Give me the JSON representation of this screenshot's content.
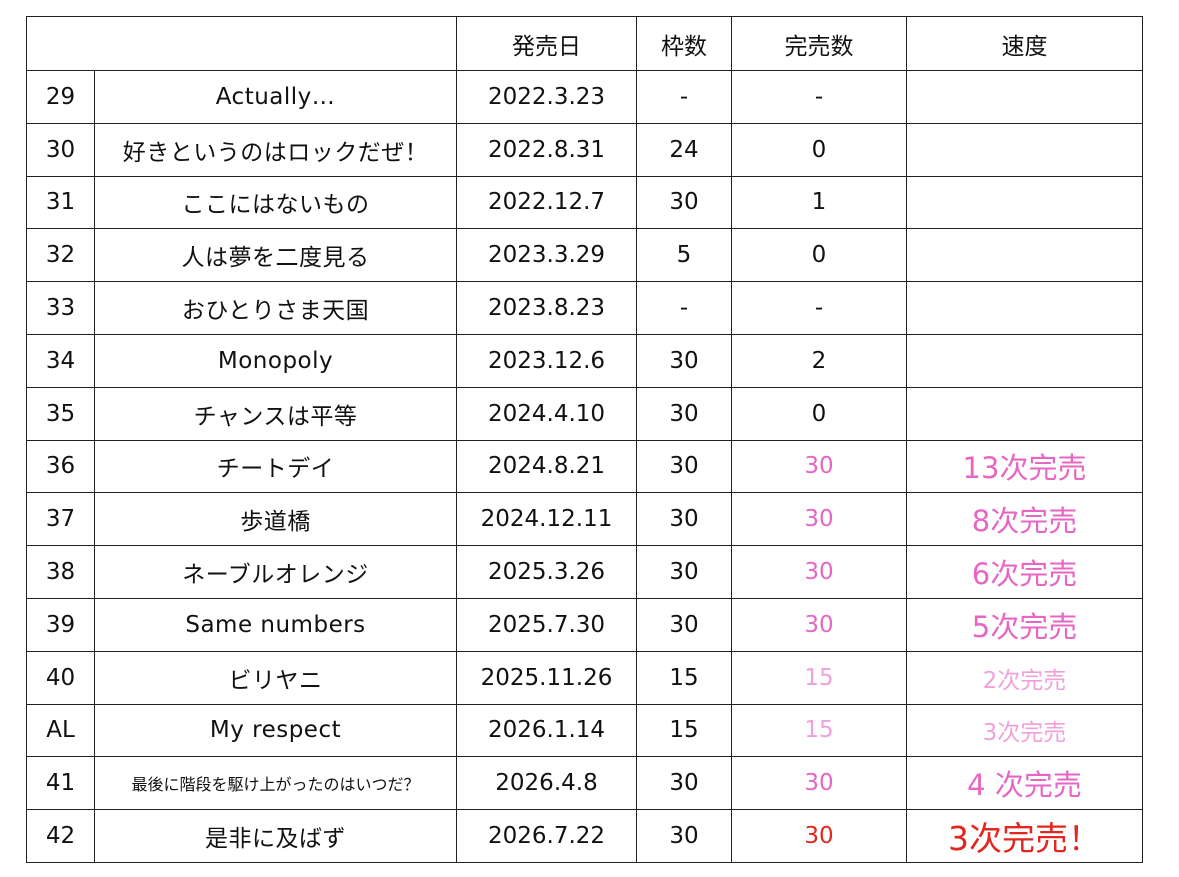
{
  "headers": {
    "blank": "",
    "release_date": "発売日",
    "slots": "枠数",
    "sold_out": "完売数",
    "speed": "速度"
  },
  "colors": {
    "pink_bold": "#e766c4",
    "pink_light": "#f0a0da",
    "red": "#e0281e",
    "border": "#222222"
  },
  "rows": [
    {
      "no": "29",
      "title": "Actually…",
      "date": "2022.3.23",
      "slots": "-",
      "sold": "-",
      "speed": "",
      "style": "plain"
    },
    {
      "no": "30",
      "title": "好きというのはロックだぜ！",
      "date": "2022.8.31",
      "slots": "24",
      "sold": "0",
      "speed": "",
      "style": "plain"
    },
    {
      "no": "31",
      "title": "ここにはないもの",
      "date": "2022.12.7",
      "slots": "30",
      "sold": "1",
      "speed": "",
      "style": "plain"
    },
    {
      "no": "32",
      "title": "人は夢を二度見る",
      "date": "2023.3.29",
      "slots": "5",
      "sold": "0",
      "speed": "",
      "style": "plain"
    },
    {
      "no": "33",
      "title": "おひとりさま天国",
      "date": "2023.8.23",
      "slots": "-",
      "sold": "-",
      "speed": "",
      "style": "plain"
    },
    {
      "no": "34",
      "title": "Monopoly",
      "date": "2023.12.6",
      "slots": "30",
      "sold": "2",
      "speed": "",
      "style": "plain"
    },
    {
      "no": "35",
      "title": "チャンスは平等",
      "date": "2024.4.10",
      "slots": "30",
      "sold": "0",
      "speed": "",
      "style": "plain"
    },
    {
      "no": "36",
      "title": "チートデイ",
      "date": "2024.8.21",
      "slots": "30",
      "sold": "30",
      "speed": "13次完売",
      "style": "pink-bold"
    },
    {
      "no": "37",
      "title": "歩道橋",
      "date": "2024.12.11",
      "slots": "30",
      "sold": "30",
      "speed": "8次完売",
      "style": "pink-bold"
    },
    {
      "no": "38",
      "title": "ネーブルオレンジ",
      "date": "2025.3.26",
      "slots": "30",
      "sold": "30",
      "speed": "6次完売",
      "style": "pink-bold"
    },
    {
      "no": "39",
      "title": "Same numbers",
      "date": "2025.7.30",
      "slots": "30",
      "sold": "30",
      "speed": "5次完売",
      "style": "pink-bold"
    },
    {
      "no": "40",
      "title": "ビリヤニ",
      "date": "2025.11.26",
      "slots": "15",
      "sold": "15",
      "speed": "2次完売",
      "style": "pink-light"
    },
    {
      "no": "AL",
      "title": "My respect",
      "date": "2026.1.14",
      "slots": "15",
      "sold": "15",
      "speed": "3次完売",
      "style": "pink-light"
    },
    {
      "no": "41",
      "title": "最後に階段を駆け上がったのはいつだ？",
      "date": "2026.4.8",
      "slots": "30",
      "sold": "30",
      "speed": "4 次完売",
      "style": "pink-bold",
      "small_title": true
    },
    {
      "no": "42",
      "title": "是非に及ばず",
      "date": "2026.7.22",
      "slots": "30",
      "sold": "30",
      "speed": "3次完売！",
      "style": "red-bold"
    }
  ]
}
